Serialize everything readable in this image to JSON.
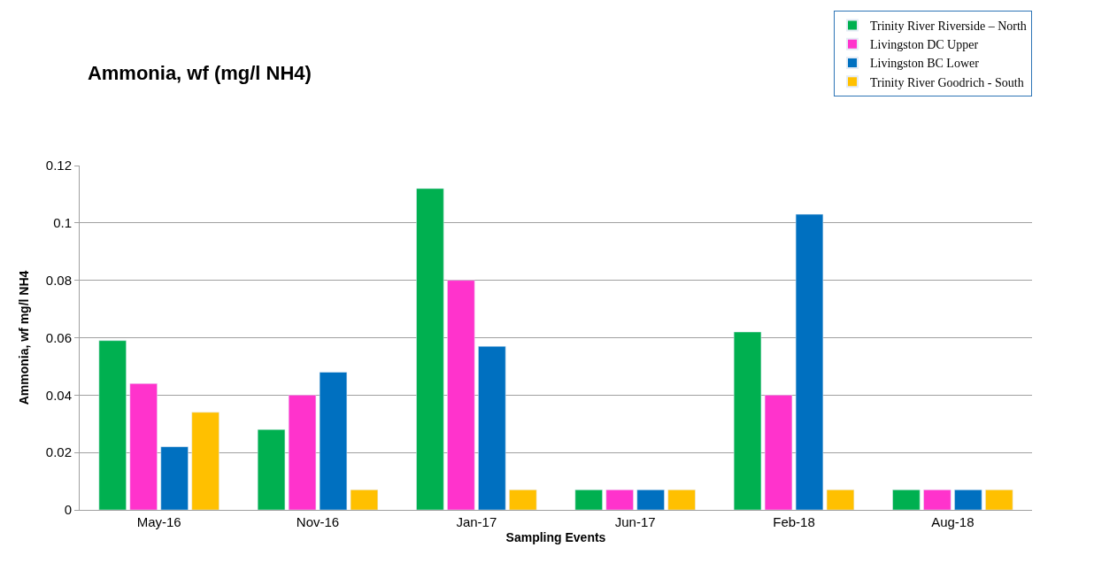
{
  "chart_data": {
    "type": "bar",
    "title": "Ammonia, wf (mg/l NH4)",
    "xlabel": "Sampling Events",
    "ylabel": "Ammonia, wf mg/l NH4",
    "categories": [
      "May-16",
      "Nov-16",
      "Jan-17",
      "Jun-17",
      "Feb-18",
      "Aug-18"
    ],
    "series": [
      {
        "name": "Trinity River Riverside – North",
        "color": "#00b050",
        "values": [
          0.059,
          0.028,
          0.112,
          0.007,
          0.062,
          0.007
        ]
      },
      {
        "name": "Livingston DC Upper",
        "color": "#ff33cc",
        "values": [
          0.044,
          0.04,
          0.08,
          0.007,
          0.04,
          0.007
        ]
      },
      {
        "name": "Livingston BC Lower",
        "color": "#0070c0",
        "values": [
          0.022,
          0.048,
          0.057,
          0.007,
          0.103,
          0.007
        ]
      },
      {
        "name": "Trinity River Goodrich - South",
        "color": "#ffc000",
        "values": [
          0.034,
          0.007,
          0.007,
          0.007,
          0.007,
          0.007
        ]
      }
    ],
    "ylim": [
      0,
      0.12
    ],
    "yticks": [
      0,
      0.02,
      0.04,
      0.06,
      0.08,
      0.1,
      0.12
    ],
    "grid": "y",
    "legend": "top right"
  }
}
